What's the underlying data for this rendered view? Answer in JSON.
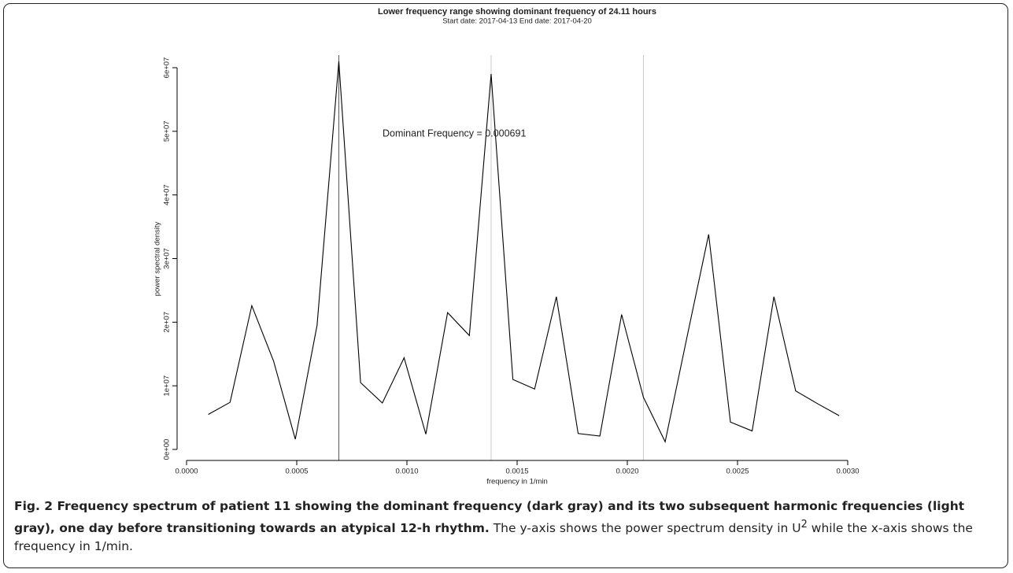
{
  "chart_data": {
    "type": "line",
    "title": "Lower frequency range showing dominant frequency of  24.11 hours",
    "subtitle": "Start date:  2017-04-13  End date:  2017-04-20",
    "x_label": "frequency in 1/min",
    "y_label": "power spectral density",
    "annotation": "Dominant Frequency =  0.000691",
    "x": [
      9.87e-05,
      0.0001974,
      0.0002961,
      0.0003948,
      0.0004935,
      0.0005922,
      0.000691,
      0.0007897,
      0.0008884,
      0.0009871,
      0.0010858,
      0.0011845,
      0.0012832,
      0.001382,
      0.0014807,
      0.0015794,
      0.0016781,
      0.0017768,
      0.0018755,
      0.0019742,
      0.002073,
      0.0021717,
      0.0022704,
      0.0023691,
      0.0024678,
      0.0025665,
      0.0026652,
      0.0027639,
      0.0028626,
      0.0029614
    ],
    "series": [
      {
        "color": "#000000",
        "values": [
          5500000,
          7400000,
          22600000,
          13900000,
          1600000,
          19500000,
          61000000,
          10500000,
          7300000,
          14400000,
          2400000,
          21500000,
          17900000,
          59000000,
          11000000,
          9500000,
          24000000,
          2500000,
          2100000,
          21200000,
          8200000,
          1200000,
          17600000,
          33800000,
          4300000,
          2900000,
          24000000,
          9200000,
          7200000,
          5300000
        ]
      }
    ],
    "vlines": [
      {
        "value": 0.000691,
        "color": "#555555"
      },
      {
        "value": 0.001382,
        "color": "#c8c8c8"
      },
      {
        "value": 0.002073,
        "color": "#c8c8c8"
      }
    ],
    "xlim": [
      0,
      0.003
    ],
    "xticks": [
      {
        "value": 0,
        "label": "0.0000"
      },
      {
        "value": 0.0005,
        "label": "0.0005"
      },
      {
        "value": 0.001,
        "label": "0.0010"
      },
      {
        "value": 0.0015,
        "label": "0.0015"
      },
      {
        "value": 0.002,
        "label": "0.0020"
      },
      {
        "value": 0.0025,
        "label": "0.0025"
      },
      {
        "value": 0.003,
        "label": "0.0030"
      }
    ],
    "ylim": [
      0,
      60000000
    ],
    "yticks": [
      {
        "value": 0,
        "label": "0e+00"
      },
      {
        "value": 10000000,
        "label": "1e+07"
      },
      {
        "value": 20000000,
        "label": "2e+07"
      },
      {
        "value": 30000000,
        "label": "3e+07"
      },
      {
        "value": 40000000,
        "label": "4e+07"
      },
      {
        "value": 50000000,
        "label": "5e+07"
      },
      {
        "value": 60000000,
        "label": "6e+07"
      }
    ],
    "grid": false
  },
  "caption": {
    "bold": "Fig. 2 Frequency spectrum of patient 11 showing the dominant frequency (dark gray) and its two subsequent harmonic frequencies (light gray), one day before transitioning towards an atypical 12-h rhythm.",
    "text": " The y-axis shows the power spectrum density in U",
    "sup": "2",
    "text_end": " while the x-axis shows the frequency in 1/min."
  }
}
